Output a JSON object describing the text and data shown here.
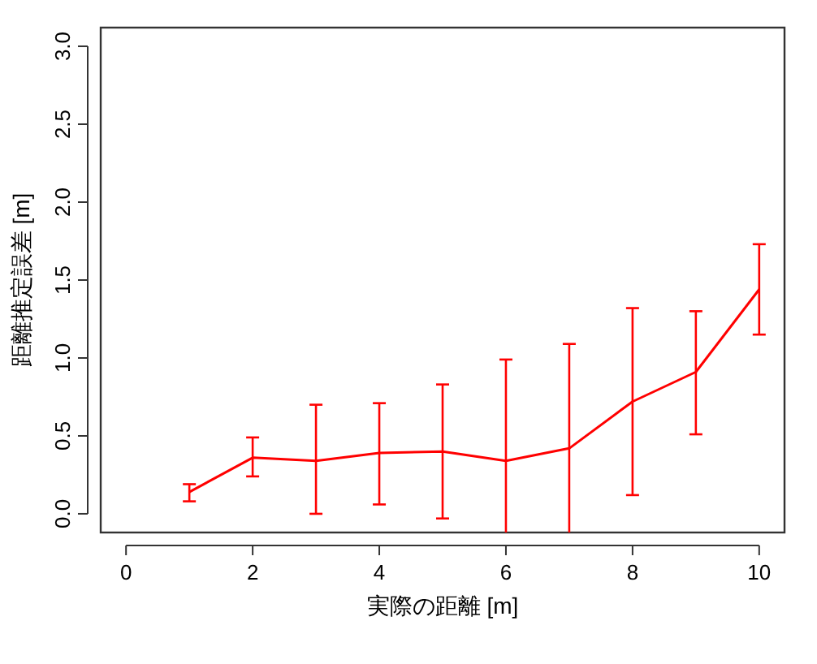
{
  "chart_data": {
    "type": "line",
    "xlabel": "実際の距離 [m]",
    "ylabel": "距離推定誤差 [m]",
    "x": [
      1,
      2,
      3,
      4,
      5,
      6,
      7,
      8,
      9,
      10
    ],
    "series": [
      {
        "color": "#ff0000",
        "values": [
          0.14,
          0.36,
          0.34,
          0.39,
          0.4,
          0.34,
          0.42,
          0.72,
          0.91,
          1.44
        ],
        "errors": [
          [
            0.08,
            0.19
          ],
          [
            0.24,
            0.49
          ],
          [
            0.0,
            0.7
          ],
          [
            0.06,
            0.71
          ],
          [
            -0.03,
            0.83
          ],
          [
            -0.12,
            0.99
          ],
          [
            -0.12,
            1.09
          ],
          [
            0.12,
            1.32
          ],
          [
            0.51,
            1.3
          ],
          [
            1.15,
            1.73
          ]
        ]
      }
    ],
    "xlim": [
      -0.4,
      10.4
    ],
    "ylim": [
      -0.12,
      3.12
    ],
    "xticks": [
      0,
      2,
      4,
      6,
      8,
      10
    ],
    "yticks": [
      {
        "value": 0,
        "label": "0.0"
      },
      {
        "value": 0.5,
        "label": "0.5"
      },
      {
        "value": 1,
        "label": "1.0"
      },
      {
        "value": 1.5,
        "label": "1.5"
      },
      {
        "value": 2,
        "label": "2.0"
      },
      {
        "value": 2.5,
        "label": "2.5"
      },
      {
        "value": 3,
        "label": "3.0"
      }
    ],
    "marker": "none",
    "line_style": "solid"
  }
}
